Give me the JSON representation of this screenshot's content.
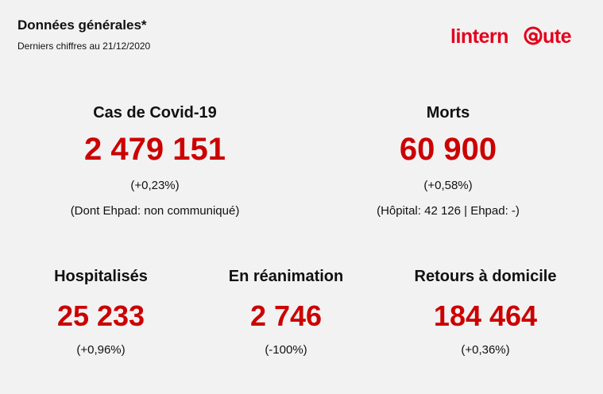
{
  "header": {
    "title": "Données générales*",
    "subtitle": "Derniers chiffres au 21/12/2020"
  },
  "logo": {
    "text": "linternaute",
    "color": "#e3001b"
  },
  "stats_top": [
    {
      "label": "Cas de Covid-19",
      "value": "2 479 151",
      "change": "(+0,23%)",
      "detail": "(Dont Ehpad: non communiqué)"
    },
    {
      "label": "Morts",
      "value": "60 900",
      "change": "(+0,58%)",
      "detail": "(Hôpital: 42 126 | Ehpad: -)"
    }
  ],
  "stats_bottom": [
    {
      "label": "Hospitalisés",
      "value": "25 233",
      "change": "(+0,96%)"
    },
    {
      "label": "En réanimation",
      "value": "2 746",
      "change": "(-100%)"
    },
    {
      "label": "Retours à domicile",
      "value": "184 464",
      "change": "(+0,36%)"
    }
  ],
  "colors": {
    "accent": "#cc0000",
    "background": "#f2f2f2"
  }
}
